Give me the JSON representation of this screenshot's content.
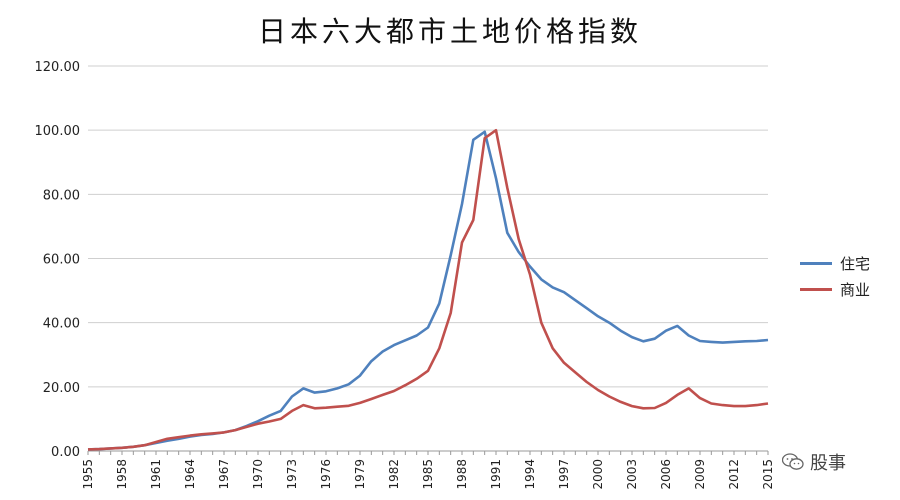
{
  "chart_data": {
    "type": "line",
    "title": "日本六大都市土地价格指数",
    "xlabel": "",
    "ylabel": "",
    "ylim": [
      0,
      120
    ],
    "yticks": [
      "0.00",
      "20.00",
      "40.00",
      "60.00",
      "80.00",
      "100.00",
      "120.00"
    ],
    "xticks": [
      "1955",
      "1958",
      "1961",
      "1964",
      "1967",
      "1970",
      "1973",
      "1976",
      "1979",
      "1982",
      "1985",
      "1988",
      "1991",
      "1994",
      "1997",
      "2000",
      "2003",
      "2006",
      "2009",
      "2012",
      "2015"
    ],
    "grid": true,
    "legend_position": "right",
    "x": [
      1955,
      1956,
      1957,
      1958,
      1959,
      1960,
      1961,
      1962,
      1963,
      1964,
      1965,
      1966,
      1967,
      1968,
      1969,
      1970,
      1971,
      1972,
      1973,
      1974,
      1975,
      1976,
      1977,
      1978,
      1979,
      1980,
      1981,
      1982,
      1983,
      1984,
      1985,
      1986,
      1987,
      1988,
      1989,
      1990,
      1991,
      1992,
      1993,
      1994,
      1995,
      1996,
      1997,
      1998,
      1999,
      2000,
      2001,
      2002,
      2003,
      2004,
      2005,
      2006,
      2007,
      2008,
      2009,
      2010,
      2011,
      2012,
      2013,
      2014,
      2015
    ],
    "series": [
      {
        "name": "住宅",
        "color": "#4f81bd",
        "values": [
          0.5,
          0.6,
          0.8,
          1.0,
          1.3,
          1.8,
          2.5,
          3.2,
          3.8,
          4.5,
          5.0,
          5.3,
          5.8,
          6.5,
          7.8,
          9.3,
          11.0,
          12.5,
          17.0,
          19.5,
          18.2,
          18.6,
          19.5,
          20.8,
          23.5,
          28.0,
          31.0,
          33.0,
          34.5,
          36.0,
          38.5,
          46.0,
          61.0,
          77.0,
          97.0,
          99.5,
          85.0,
          68.0,
          62.0,
          57.5,
          53.5,
          51.0,
          49.5,
          47.0,
          44.5,
          42.0,
          40.0,
          37.5,
          35.5,
          34.2,
          35.0,
          37.5,
          39.0,
          36.0,
          34.3,
          34.0,
          33.8,
          34.0,
          34.2,
          34.3,
          34.6
        ]
      },
      {
        "name": "商业",
        "color": "#c0504d",
        "values": [
          0.5,
          0.6,
          0.8,
          1.0,
          1.3,
          1.8,
          2.8,
          3.8,
          4.3,
          4.8,
          5.2,
          5.5,
          5.8,
          6.5,
          7.5,
          8.5,
          9.2,
          10.0,
          12.5,
          14.3,
          13.3,
          13.5,
          13.8,
          14.1,
          15.0,
          16.2,
          17.5,
          18.7,
          20.5,
          22.5,
          25.0,
          32.0,
          43.0,
          65.0,
          72.0,
          97.5,
          100.0,
          82.0,
          66.0,
          55.0,
          40.0,
          32.0,
          27.5,
          24.5,
          21.5,
          19.0,
          17.0,
          15.3,
          14.0,
          13.3,
          13.4,
          15.0,
          17.5,
          19.5,
          16.5,
          14.8,
          14.3,
          14.0,
          14.0,
          14.3,
          14.8
        ]
      }
    ]
  },
  "watermark": {
    "text": "股事",
    "icon": "wechat-icon"
  }
}
